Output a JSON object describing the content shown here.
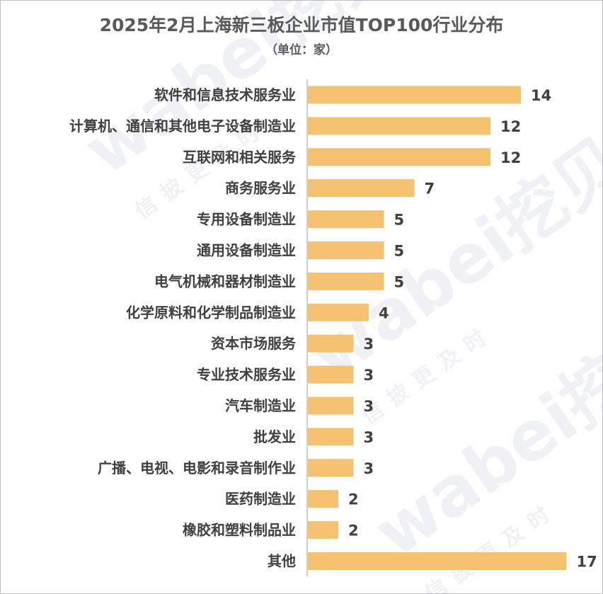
{
  "title": "2025年2月上海新三板企业市值TOP100行业分布",
  "subtitle": "（单位：家）",
  "watermark": {
    "brand": "wabei挖贝",
    "slogan": "信披更及时"
  },
  "chart_data": {
    "type": "bar",
    "orientation": "horizontal",
    "categories": [
      "软件和信息技术服务业",
      "计算机、通信和其他电子设备制造业",
      "互联网和相关服务",
      "商务服务业",
      "专用设备制造业",
      "通用设备制造业",
      "电气机械和器材制造业",
      "化学原料和化学制品制造业",
      "资本市场服务",
      "专业技术服务业",
      "汽车制造业",
      "批发业",
      "广播、电视、电影和录音制作业",
      "医药制造业",
      "橡胶和塑料制品业",
      "其他"
    ],
    "values": [
      14,
      12,
      12,
      7,
      5,
      5,
      5,
      4,
      3,
      3,
      3,
      3,
      3,
      2,
      2,
      17
    ],
    "title": "2025年2月上海新三板企业市值TOP100行业分布",
    "xlabel": "",
    "ylabel": "",
    "xlim": [
      0,
      17
    ],
    "grid": false,
    "legend": "none",
    "bar_color": "#f5c272",
    "axis_color": "#bfbfbf"
  }
}
